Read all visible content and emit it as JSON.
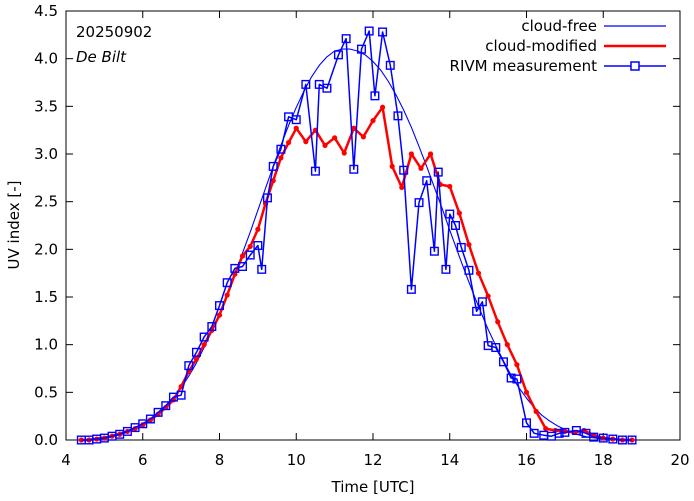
{
  "chart_data": {
    "type": "line",
    "date_label": "20250902",
    "location_label": "De Bilt",
    "xlabel": "Time  [UTC]",
    "ylabel": "UV index  [-]",
    "xlim": [
      4,
      20
    ],
    "ylim": [
      0,
      4.5
    ],
    "x_ticks": [
      "4",
      "6",
      "8",
      "10",
      "12",
      "14",
      "16",
      "18",
      "20"
    ],
    "y_ticks": [
      "0.0",
      "0.5",
      "1.0",
      "1.5",
      "2.0",
      "2.5",
      "3.0",
      "3.5",
      "4.0",
      "4.5"
    ],
    "legend_position": "top-right",
    "series": [
      {
        "name": "cloud-free",
        "color": "#0000ff",
        "style": "thin-line",
        "x": [
          4.4,
          4.6,
          4.8,
          5.0,
          5.2,
          5.4,
          5.6,
          5.8,
          6.0,
          6.2,
          6.4,
          6.6,
          6.8,
          7.0,
          7.2,
          7.4,
          7.6,
          7.8,
          8.0,
          8.2,
          8.4,
          8.6,
          8.8,
          9.0,
          9.2,
          9.4,
          9.6,
          9.8,
          10.0,
          10.2,
          10.4,
          10.6,
          10.8,
          11.0,
          11.2,
          11.4,
          11.6,
          11.8,
          12.0,
          12.2,
          12.4,
          12.6,
          12.8,
          13.0,
          13.2,
          13.4,
          13.6,
          13.8,
          14.0,
          14.2,
          14.4,
          14.6,
          14.8,
          15.0,
          15.2,
          15.4,
          15.6,
          15.8,
          16.0,
          16.2,
          16.4,
          16.6,
          16.8,
          17.0,
          17.2,
          17.4,
          17.6,
          17.8,
          18.0,
          18.2,
          18.4,
          18.6,
          18.8
        ],
        "values": [
          0.0,
          0.01,
          0.02,
          0.03,
          0.05,
          0.07,
          0.1,
          0.13,
          0.17,
          0.22,
          0.28,
          0.35,
          0.44,
          0.55,
          0.67,
          0.81,
          0.97,
          1.14,
          1.33,
          1.53,
          1.74,
          1.96,
          2.18,
          2.41,
          2.64,
          2.87,
          3.09,
          3.3,
          3.49,
          3.66,
          3.81,
          3.93,
          4.02,
          4.08,
          4.1,
          4.1,
          4.08,
          4.04,
          3.97,
          3.88,
          3.76,
          3.62,
          3.46,
          3.28,
          3.08,
          2.87,
          2.65,
          2.43,
          2.2,
          1.98,
          1.76,
          1.55,
          1.35,
          1.16,
          0.99,
          0.83,
          0.68,
          0.55,
          0.44,
          0.34,
          0.26,
          0.2,
          0.15,
          0.11,
          0.07,
          0.05,
          0.03,
          0.02,
          0.01,
          0.01,
          0.0,
          0.0,
          0.0
        ]
      },
      {
        "name": "cloud-modified",
        "color": "#ff0000",
        "style": "thick-line-dots",
        "x": [
          4.4,
          4.6,
          4.8,
          5.0,
          5.2,
          5.4,
          5.6,
          5.8,
          6.0,
          6.2,
          6.4,
          6.6,
          6.8,
          7.0,
          7.2,
          7.4,
          7.6,
          7.8,
          8.0,
          8.2,
          8.4,
          8.6,
          8.8,
          9.0,
          9.2,
          9.4,
          9.6,
          9.8,
          10.0,
          10.25,
          10.5,
          10.75,
          11.0,
          11.25,
          11.5,
          11.75,
          12.0,
          12.25,
          12.5,
          12.75,
          13.0,
          13.25,
          13.5,
          13.75,
          14.0,
          14.25,
          14.5,
          14.75,
          15.0,
          15.25,
          15.5,
          15.75,
          16.0,
          16.25,
          16.5,
          16.75,
          17.0,
          17.25,
          17.5,
          17.75,
          18.0,
          18.25,
          18.5,
          18.75
        ],
        "values": [
          0.0,
          0.0,
          0.01,
          0.02,
          0.04,
          0.06,
          0.09,
          0.12,
          0.16,
          0.21,
          0.27,
          0.34,
          0.42,
          0.56,
          0.72,
          0.85,
          1.0,
          1.15,
          1.31,
          1.52,
          1.74,
          1.93,
          2.03,
          2.21,
          2.48,
          2.72,
          2.96,
          3.12,
          3.27,
          3.13,
          3.25,
          3.09,
          3.17,
          3.01,
          3.27,
          3.18,
          3.35,
          3.49,
          2.87,
          2.65,
          3.0,
          2.85,
          3.0,
          2.68,
          2.66,
          2.38,
          2.05,
          1.75,
          1.51,
          1.24,
          1.0,
          0.79,
          0.5,
          0.3,
          0.12,
          0.1,
          0.09,
          0.08,
          0.1,
          0.05,
          0.02,
          0.01,
          0.0,
          0.0
        ]
      },
      {
        "name": "RIVM measurement",
        "color": "#0000ff",
        "style": "line-squares",
        "x": [
          4.4,
          4.6,
          4.8,
          5.0,
          5.2,
          5.4,
          5.6,
          5.8,
          6.0,
          6.2,
          6.4,
          6.6,
          6.8,
          7.0,
          7.2,
          7.4,
          7.6,
          7.8,
          8.0,
          8.2,
          8.4,
          8.6,
          8.8,
          9.0,
          9.1,
          9.25,
          9.4,
          9.6,
          9.8,
          10.0,
          10.25,
          10.5,
          10.6,
          10.8,
          11.1,
          11.3,
          11.5,
          11.7,
          11.9,
          12.05,
          12.25,
          12.45,
          12.65,
          12.8,
          13.0,
          13.2,
          13.4,
          13.6,
          13.7,
          13.9,
          14.0,
          14.15,
          14.3,
          14.5,
          14.7,
          14.85,
          15.0,
          15.2,
          15.4,
          15.6,
          15.75,
          16.0,
          16.2,
          16.45,
          16.65,
          16.85,
          17.0,
          17.3,
          17.55,
          17.75,
          18.0,
          18.25,
          18.5,
          18.75
        ],
        "values": [
          0.0,
          0.0,
          0.01,
          0.02,
          0.04,
          0.06,
          0.09,
          0.13,
          0.17,
          0.22,
          0.29,
          0.36,
          0.45,
          0.47,
          0.78,
          0.92,
          1.08,
          1.19,
          1.41,
          1.65,
          1.8,
          1.82,
          1.94,
          2.04,
          1.79,
          2.54,
          2.87,
          3.05,
          3.39,
          3.36,
          3.73,
          2.82,
          3.73,
          3.69,
          4.04,
          4.21,
          2.84,
          4.1,
          4.29,
          3.61,
          4.28,
          3.93,
          3.4,
          2.83,
          1.58,
          2.49,
          2.72,
          1.98,
          2.81,
          1.79,
          2.37,
          2.25,
          2.02,
          1.78,
          1.35,
          1.45,
          0.99,
          0.97,
          0.82,
          0.65,
          0.64,
          0.18,
          0.07,
          0.05,
          0.04,
          0.07,
          0.08,
          0.1,
          0.07,
          0.03,
          0.02,
          0.01,
          0.0,
          0.0
        ]
      }
    ]
  }
}
